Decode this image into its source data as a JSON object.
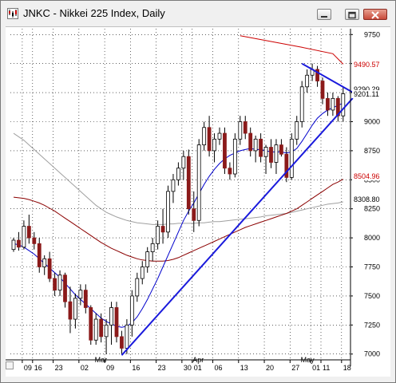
{
  "window": {
    "title": "JNKC - Nikkei 225 Index, Daily"
  },
  "chart_data": {
    "type": "candlestick",
    "title": "JNKC - Nikkei 225 Index, Daily",
    "ylim": [
      6950,
      9800
    ],
    "y_ticks": [
      7000,
      7250,
      7500,
      7750,
      8000,
      8250,
      8500,
      8750,
      9000,
      9250,
      9500,
      9750
    ],
    "y_tick_labels": [
      "7000",
      "7250",
      "7500",
      "7750",
      "8000",
      "8250",
      "8500",
      "8750",
      "9000",
      "9250",
      "9500",
      "9750"
    ],
    "x_tick_labels": [
      "09",
      "16",
      "23",
      "02",
      "09",
      "16",
      "23",
      "30",
      "01",
      "06",
      "13",
      "20",
      "27",
      "01",
      "11",
      "18"
    ],
    "month_labels": [
      "Mar",
      "Apr",
      "May"
    ],
    "price_tags": [
      {
        "text": "9490.57",
        "color": "#cc0000"
      },
      {
        "text": "9290.29",
        "color": "#000000"
      },
      {
        "text": "9201.11",
        "color": "#000000"
      },
      {
        "text": "8504.96",
        "color": "#cc0000"
      },
      {
        "text": "8308.80",
        "color": "#000000"
      }
    ],
    "colors": {
      "up": "#ffffff",
      "down": "#8b1a1a",
      "wick": "#000000",
      "sma_fast": "#0000cc",
      "sma_mid": "#8b0000",
      "sma_slow": "#a0a0a0",
      "sma_200": "#cc0000",
      "trendline": "#1a1adc",
      "grid": "#000000"
    },
    "candles": [
      [
        7900,
        8000,
        7880,
        7980
      ],
      [
        7980,
        8050,
        7890,
        7920
      ],
      [
        7920,
        8150,
        7900,
        8100
      ],
      [
        8100,
        8200,
        7950,
        8000
      ],
      [
        8000,
        8050,
        7900,
        7950
      ],
      [
        7950,
        8000,
        7700,
        7750
      ],
      [
        7750,
        7850,
        7680,
        7820
      ],
      [
        7820,
        7880,
        7620,
        7650
      ],
      [
        7650,
        7700,
        7500,
        7550
      ],
      [
        7550,
        7720,
        7500,
        7680
      ],
      [
        7680,
        7700,
        7400,
        7450
      ],
      [
        7450,
        7580,
        7180,
        7300
      ],
      [
        7300,
        7520,
        7220,
        7480
      ],
      [
        7480,
        7600,
        7420,
        7550
      ],
      [
        7550,
        7600,
        7350,
        7400
      ],
      [
        7400,
        7420,
        7080,
        7120
      ],
      [
        7120,
        7350,
        7080,
        7300
      ],
      [
        7300,
        7350,
        7100,
        7150
      ],
      [
        7150,
        7300,
        7000,
        7250
      ],
      [
        7250,
        7450,
        7080,
        7400
      ],
      [
        7400,
        7450,
        7100,
        7150
      ],
      [
        7150,
        7200,
        7000,
        7050
      ],
      [
        7050,
        7300,
        7000,
        7250
      ],
      [
        7250,
        7550,
        7150,
        7500
      ],
      [
        7500,
        7700,
        7450,
        7650
      ],
      [
        7650,
        7800,
        7600,
        7750
      ],
      [
        7750,
        7920,
        7700,
        7880
      ],
      [
        7880,
        8000,
        7800,
        7950
      ],
      [
        7950,
        8150,
        7900,
        8100
      ],
      [
        8100,
        8250,
        7950,
        8050
      ],
      [
        8050,
        8450,
        8000,
        8400
      ],
      [
        8400,
        8550,
        8300,
        8500
      ],
      [
        8500,
        8650,
        8450,
        8600
      ],
      [
        8600,
        8750,
        8500,
        8700
      ],
      [
        8700,
        8760,
        8200,
        8250
      ],
      [
        8250,
        8400,
        8050,
        8150
      ],
      [
        8150,
        8850,
        8100,
        8800
      ],
      [
        8800,
        9000,
        8750,
        8950
      ],
      [
        8950,
        9050,
        8700,
        8750
      ],
      [
        8750,
        8900,
        8650,
        8850
      ],
      [
        8850,
        8950,
        8800,
        8900
      ],
      [
        8900,
        8950,
        8550,
        8600
      ],
      [
        8600,
        8650,
        8500,
        8550
      ],
      [
        8550,
        8900,
        8520,
        8850
      ],
      [
        8850,
        9050,
        8800,
        9000
      ],
      [
        9000,
        9050,
        8850,
        8900
      ],
      [
        8900,
        8950,
        8700,
        8750
      ],
      [
        8750,
        8880,
        8650,
        8850
      ],
      [
        8850,
        8900,
        8650,
        8700
      ],
      [
        8700,
        8800,
        8550,
        8780
      ],
      [
        8780,
        8850,
        8600,
        8650
      ],
      [
        8650,
        8850,
        8550,
        8800
      ],
      [
        8800,
        8850,
        8700,
        8720
      ],
      [
        8720,
        8780,
        8480,
        8520
      ],
      [
        8520,
        8900,
        8500,
        8850
      ],
      [
        8850,
        9050,
        8800,
        9000
      ],
      [
        9000,
        9350,
        8950,
        9300
      ],
      [
        9300,
        9450,
        9250,
        9400
      ],
      [
        9400,
        9500,
        9350,
        9450
      ],
      [
        9450,
        9480,
        9300,
        9350
      ],
      [
        9350,
        9380,
        9150,
        9200
      ],
      [
        9200,
        9250,
        9050,
        9100
      ],
      [
        9100,
        9250,
        9050,
        9200
      ],
      [
        9200,
        9220,
        9000,
        9050
      ],
      [
        9050,
        9300,
        9000,
        9240
      ]
    ],
    "sma_fast": [
      7950,
      7940,
      7920,
      7890,
      7860,
      7820,
      7780,
      7740,
      7700,
      7660,
      7610,
      7560,
      7510,
      7470,
      7430,
      7390,
      7350,
      7310,
      7280,
      7260,
      7240,
      7230,
      7240,
      7270,
      7320,
      7390,
      7470,
      7560,
      7650,
      7750,
      7850,
      7950,
      8050,
      8150,
      8230,
      8300,
      8380,
      8460,
      8530,
      8590,
      8640,
      8680,
      8710,
      8730,
      8750,
      8760,
      8770,
      8760,
      8760,
      8750,
      8740,
      8740,
      8740,
      8730,
      8740,
      8770,
      8830,
      8900,
      8970,
      9030,
      9070,
      9100,
      9120,
      9140,
      9160
    ],
    "sma_mid": [
      8350,
      8345,
      8340,
      8330,
      8315,
      8300,
      8280,
      8255,
      8230,
      8200,
      8170,
      8140,
      8110,
      8080,
      8050,
      8020,
      7990,
      7960,
      7935,
      7910,
      7890,
      7870,
      7850,
      7835,
      7820,
      7810,
      7805,
      7800,
      7800,
      7800,
      7805,
      7815,
      7830,
      7850,
      7870,
      7890,
      7910,
      7930,
      7950,
      7970,
      7990,
      8010,
      8030,
      8050,
      8070,
      8090,
      8105,
      8120,
      8135,
      8150,
      8165,
      8180,
      8195,
      8210,
      8230,
      8250,
      8280,
      8310,
      8340,
      8370,
      8400,
      8430,
      8460,
      8480,
      8505
    ],
    "sma_slow": [
      8900,
      8870,
      8840,
      8800,
      8760,
      8720,
      8680,
      8640,
      8600,
      8560,
      8520,
      8480,
      8440,
      8400,
      8360,
      8320,
      8280,
      8250,
      8220,
      8200,
      8180,
      8165,
      8150,
      8140,
      8130,
      8125,
      8120,
      8115,
      8115,
      8115,
      8120,
      8120,
      8125,
      8125,
      8125,
      8125,
      8130,
      8130,
      8135,
      8140,
      8140,
      8145,
      8150,
      8155,
      8160,
      8165,
      8170,
      8175,
      8180,
      8190,
      8195,
      8200,
      8205,
      8210,
      8220,
      8230,
      8240,
      8250,
      8260,
      8270,
      8280,
      8290,
      8295,
      8300,
      8310
    ],
    "sma_200": [
      [
        44,
        9740
      ],
      [
        50,
        9690
      ],
      [
        56,
        9640
      ],
      [
        62,
        9585
      ],
      [
        64,
        9495
      ]
    ],
    "trendlines": [
      {
        "from": [
          21,
          6990
        ],
        "to": [
          64,
          9010
        ]
      },
      {
        "from": [
          56,
          9500
        ],
        "to": [
          64,
          9060
        ]
      }
    ]
  }
}
